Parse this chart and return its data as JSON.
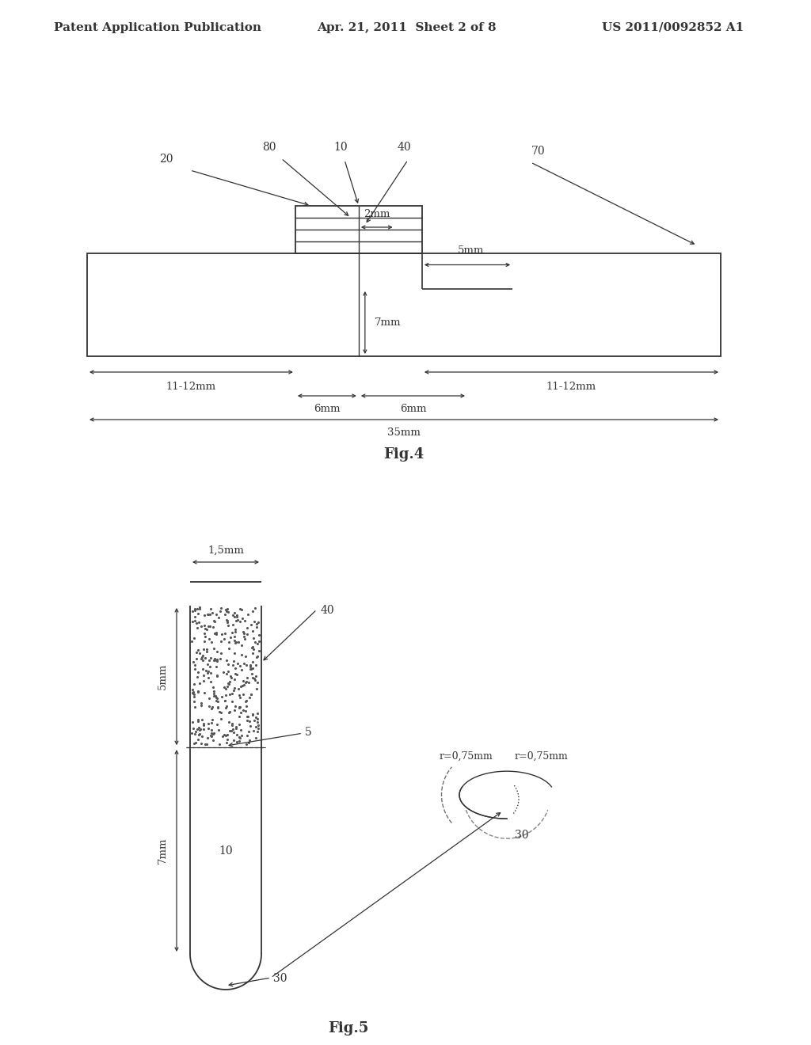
{
  "bg_color": "#ffffff",
  "header_left": "Patent Application Publication",
  "header_mid": "Apr. 21, 2011  Sheet 2 of 8",
  "header_right": "US 2011/0092852 A1",
  "fig4_label": "Fig.4",
  "fig5_label": "Fig.5",
  "line_color": "#333333",
  "text_color": "#333333"
}
